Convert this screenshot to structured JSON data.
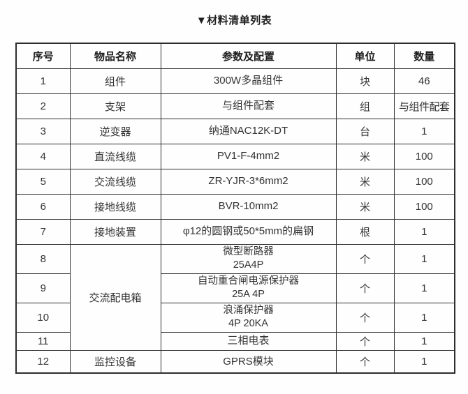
{
  "title": "▼材料清单列表",
  "table": {
    "headers": [
      "序号",
      "物品名称",
      "参数及配置",
      "单位",
      "数量"
    ],
    "rows": [
      {
        "no": "1",
        "name": "组件",
        "spec": "300W多晶组件",
        "unit": "块",
        "qty": "46"
      },
      {
        "no": "2",
        "name": "支架",
        "spec": "与组件配套",
        "unit": "组",
        "qty": "与组件配套"
      },
      {
        "no": "3",
        "name": "逆变器",
        "spec": "纳通NAC12K-DT",
        "unit": "台",
        "qty": "1"
      },
      {
        "no": "4",
        "name": "直流线缆",
        "spec": "PV1-F-4mm2",
        "unit": "米",
        "qty": "100"
      },
      {
        "no": "5",
        "name": "交流线缆",
        "spec": "ZR-YJR-3*6mm2",
        "unit": "米",
        "qty": "100"
      },
      {
        "no": "6",
        "name": "接地线缆",
        "spec": "BVR-10mm2",
        "unit": "米",
        "qty": "100"
      },
      {
        "no": "7",
        "name": "接地装置",
        "spec": "φ12的圆钢或50*5mm的扁钢",
        "unit": "根",
        "qty": "1"
      },
      {
        "no": "8",
        "name": "交流配电箱",
        "name_rowspan": 4,
        "spec": "微型断路器\n25A4P",
        "unit": "个",
        "qty": "1"
      },
      {
        "no": "9",
        "spec": "自动重合闸电源保护器\n25A 4P",
        "unit": "个",
        "qty": "1"
      },
      {
        "no": "10",
        "spec": "浪涌保护器\n4P 20KA",
        "unit": "个",
        "qty": "1"
      },
      {
        "no": "11",
        "spec": "三相电表",
        "unit": "个",
        "qty": "1"
      },
      {
        "no": "12",
        "name": "监控设备",
        "spec": "GPRS模块",
        "unit": "个",
        "qty": "1"
      }
    ]
  }
}
